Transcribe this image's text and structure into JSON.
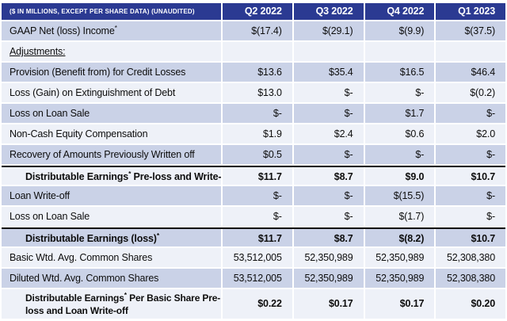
{
  "table": {
    "title_cell": "($ IN MILLIONS, EXCEPT PER SHARE DATA) (UNAUDITED)",
    "columns": [
      "Q2 2022",
      "Q3 2022",
      "Q4 2022",
      "Q1 2023"
    ],
    "rows": [
      {
        "label": "GAAP Net (loss) Income",
        "sup": "*",
        "values": [
          "$(17.4)",
          "$(29.1)",
          "$(9.9)",
          "$(37.5)"
        ]
      },
      {
        "label": "Adjustments:",
        "values": [
          "",
          "",
          "",
          ""
        ]
      },
      {
        "label": "Provision (Benefit from) for Credit Losses",
        "values": [
          "$13.6",
          "$35.4",
          "$16.5",
          "$46.4"
        ]
      },
      {
        "label": "Loss (Gain) on Extinguishment of Debt",
        "values": [
          "$13.0",
          "$-",
          "$-",
          "$(0.2)"
        ]
      },
      {
        "label": "Loss on Loan Sale",
        "values": [
          "$-",
          "$-",
          "$1.7",
          "$-"
        ]
      },
      {
        "label": "Non-Cash Equity Compensation",
        "values": [
          "$1.9",
          "$2.4",
          "$0.6",
          "$2.0"
        ]
      },
      {
        "label": "Recovery of Amounts Previously Written off",
        "values": [
          "$0.5",
          "$-",
          "$-",
          "$-"
        ]
      },
      {
        "label": "Distributable Earnings",
        "sup": "*",
        "label_rest": " Pre-loss and Write-off",
        "values": [
          "$11.7",
          "$8.7",
          "$9.0",
          "$10.7"
        ]
      },
      {
        "label": "Loan Write-off",
        "values": [
          "$-",
          "$-",
          "$(15.5)",
          "$-"
        ]
      },
      {
        "label": "Loss on Loan Sale",
        "values": [
          "$-",
          "$-",
          "$(1.7)",
          "$-"
        ]
      },
      {
        "label": "Distributable Earnings (loss)",
        "sup": "*",
        "values": [
          "$11.7",
          "$8.7",
          "$(8.2)",
          "$10.7"
        ]
      },
      {
        "label": "Basic Wtd. Avg. Common Shares",
        "values": [
          "53,512,005",
          "52,350,989",
          "52,350,989",
          "52,308,380"
        ]
      },
      {
        "label": "Diluted Wtd. Avg. Common Shares",
        "values": [
          "53,512,005",
          "52,350,989",
          "52,350,989",
          "52,308,380"
        ]
      },
      {
        "label": "Distributable Earnings",
        "sup": "*",
        "label_rest": " Per Basic Share Pre-loss and Loan Write-off",
        "values": [
          "$0.22",
          "$0.17",
          "$0.17",
          "$0.20"
        ]
      }
    ],
    "colors": {
      "header_bg": "#2B3A92",
      "row_blue": "#CAD2E7",
      "row_light": "#EEF1F8",
      "divider": "#000000",
      "text": "#0D0D0D"
    }
  }
}
